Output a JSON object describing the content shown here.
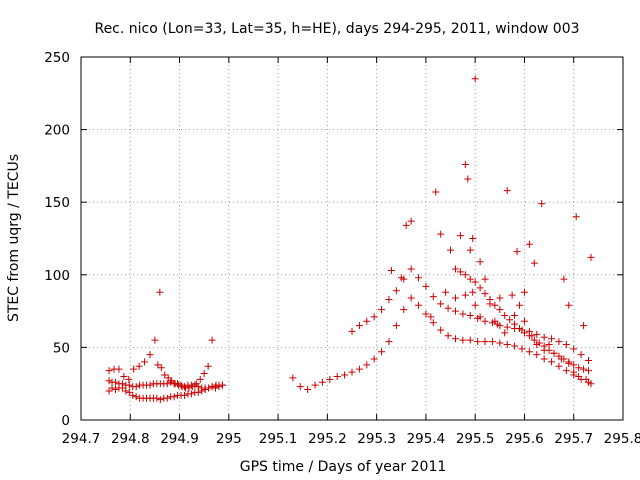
{
  "chart_data": {
    "type": "scatter",
    "title": "Rec. nico (Lon=33, Lat=35, h=HE), days 294-295, 2011, window 003",
    "xlabel": "GPS time / Days of year 2011",
    "ylabel": "STEC from uqrg / TECUs",
    "xlim": [
      294.7,
      295.8
    ],
    "ylim": [
      0,
      250
    ],
    "xticks": [
      "294.7",
      "294.8",
      "294.9",
      "295",
      "295.1",
      "295.2",
      "295.3",
      "295.4",
      "295.5",
      "295.6",
      "295.7",
      "295.8"
    ],
    "yticks": [
      "0",
      "50",
      "100",
      "150",
      "200",
      "250"
    ],
    "grid": true,
    "marker": "+",
    "color": "#cc0000",
    "series": [
      {
        "x": [
          294.757,
          294.763,
          294.77,
          294.777,
          294.784,
          294.791,
          294.798,
          294.805,
          294.812,
          294.819,
          294.826,
          294.833,
          294.84,
          294.847,
          294.854,
          294.861,
          294.868,
          294.875,
          294.882,
          294.889,
          294.896,
          294.903,
          294.91,
          294.917,
          294.924,
          294.931,
          294.938,
          294.945,
          294.952,
          294.959,
          294.966,
          294.973,
          294.98,
          294.987
        ],
        "y": [
          20,
          22,
          21,
          22,
          22,
          20,
          19,
          17,
          16,
          15,
          15,
          15,
          15,
          15,
          15,
          14,
          15,
          15,
          16,
          16,
          17,
          17,
          17,
          18,
          18,
          19,
          19,
          20,
          21,
          22,
          23,
          23,
          24,
          24
        ]
      },
      {
        "x": [
          294.757,
          294.763,
          294.77,
          294.777,
          294.784,
          294.791,
          294.798,
          294.805,
          294.812,
          294.819,
          294.826,
          294.833,
          294.84,
          294.847,
          294.854,
          294.861,
          294.868,
          294.875,
          294.882,
          294.889,
          294.896,
          294.903,
          294.91,
          294.917,
          294.924,
          294.931,
          294.938,
          294.945,
          294.952,
          294.959,
          294.966,
          294.973,
          294.98,
          294.987
        ],
        "y": [
          27,
          26,
          26,
          25,
          25,
          24,
          24,
          23,
          23,
          24,
          24,
          24,
          24,
          25,
          25,
          25,
          25,
          25,
          26,
          25,
          25,
          24,
          23,
          24,
          24,
          24,
          23,
          22,
          22,
          22,
          23,
          22,
          23,
          24
        ]
      },
      {
        "x": [
          294.757,
          294.767,
          294.777,
          294.787,
          294.797,
          294.807,
          294.818,
          294.829,
          294.84,
          294.85,
          294.856,
          294.863,
          294.87,
          294.877,
          294.884,
          294.891,
          294.898,
          294.905,
          294.912,
          294.919,
          294.926,
          294.934,
          294.942,
          294.95,
          294.958,
          294.966,
          294.974
        ],
        "y": [
          34,
          35,
          35,
          30,
          28,
          35,
          37,
          40,
          45,
          55,
          38,
          36,
          31,
          29,
          27,
          25,
          24,
          23,
          22,
          22,
          23,
          25,
          28,
          32,
          37,
          55,
          24
        ]
      },
      {
        "x": [
          294.86
        ],
        "y": [
          88
        ]
      },
      {
        "x": [
          295.13,
          295.145,
          295.16,
          295.175,
          295.19,
          295.205,
          295.22,
          295.235,
          295.25,
          295.265,
          295.28,
          295.295,
          295.31,
          295.325,
          295.34,
          295.355,
          295.37,
          295.385,
          295.4,
          295.415,
          295.43,
          295.445,
          295.46,
          295.475,
          295.49,
          295.505,
          295.52,
          295.535,
          295.55,
          295.565,
          295.58,
          295.595,
          295.61,
          295.625,
          295.64,
          295.655,
          295.67,
          295.685,
          295.7,
          295.715,
          295.73
        ],
        "y": [
          29,
          23,
          21,
          24,
          26,
          28,
          30,
          31,
          33,
          35,
          38,
          42,
          47,
          54,
          65,
          76,
          84,
          79,
          73,
          67,
          62,
          58,
          56,
          55,
          55,
          54,
          54,
          54,
          53,
          52,
          51,
          49,
          47,
          45,
          42,
          40,
          37,
          34,
          31,
          28,
          26
        ]
      },
      {
        "x": [
          295.25,
          295.265,
          295.28,
          295.295,
          295.31,
          295.325,
          295.34,
          295.355,
          295.37,
          295.385,
          295.4,
          295.415,
          295.43,
          295.445,
          295.46,
          295.475,
          295.49,
          295.505,
          295.52,
          295.535,
          295.55,
          295.565,
          295.58,
          295.595,
          295.61,
          295.625,
          295.64,
          295.655,
          295.67,
          295.685,
          295.7,
          295.715,
          295.73
        ],
        "y": [
          61,
          65,
          68,
          71,
          76,
          83,
          89,
          97,
          104,
          98,
          92,
          85,
          80,
          77,
          75,
          73,
          72,
          70,
          68,
          67,
          65,
          64,
          63,
          62,
          61,
          59,
          57,
          56,
          54,
          52,
          49,
          45,
          41
        ]
      },
      {
        "x": [
          295.46,
          295.47,
          295.48,
          295.49,
          295.5,
          295.51,
          295.52,
          295.53,
          295.54,
          295.55,
          295.56,
          295.57,
          295.58,
          295.59,
          295.6,
          295.61,
          295.62,
          295.63,
          295.64,
          295.65,
          295.66,
          295.67,
          295.68,
          295.69,
          295.7,
          295.71,
          295.72,
          295.73
        ],
        "y": [
          104,
          102,
          100,
          97,
          95,
          91,
          87,
          83,
          79,
          76,
          72,
          69,
          66,
          63,
          60,
          58,
          55,
          53,
          51,
          48,
          46,
          44,
          42,
          40,
          38,
          36,
          35,
          34
        ]
      },
      {
        "x": [
          295.33,
          295.35,
          295.36,
          295.37,
          295.41,
          295.43,
          295.45,
          295.47,
          295.48,
          295.485,
          295.49,
          295.495,
          295.5,
          295.51,
          295.52,
          295.54,
          295.55,
          295.565,
          295.575,
          295.585,
          295.6,
          295.61,
          295.62,
          295.635,
          295.65,
          295.68,
          295.69,
          295.705,
          295.72,
          295.735
        ],
        "y": [
          103,
          98,
          134,
          137,
          71,
          128,
          117,
          127,
          176,
          166,
          117,
          125,
          235,
          109,
          97,
          68,
          84,
          158,
          86,
          116,
          88,
          121,
          108,
          149,
          52,
          97,
          79,
          140,
          65,
          112
        ]
      },
      {
        "x": [
          295.42,
          295.44,
          295.46,
          295.48,
          295.495,
          295.5,
          295.51,
          295.53,
          295.545,
          295.56,
          295.58,
          295.59,
          295.6,
          295.615,
          295.625,
          295.64,
          295.66,
          295.675,
          295.69,
          295.7,
          295.71,
          295.725,
          295.735
        ],
        "y": [
          157,
          88,
          84,
          86,
          88,
          79,
          71,
          80,
          66,
          60,
          72,
          79,
          68,
          58,
          52,
          48,
          46,
          42,
          39,
          33,
          30,
          28,
          25
        ]
      }
    ]
  }
}
